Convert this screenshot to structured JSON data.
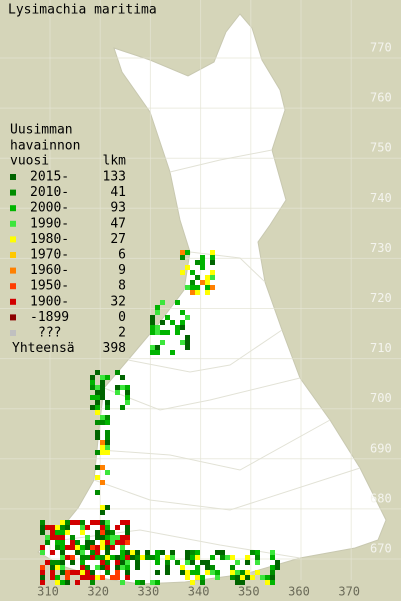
{
  "title": "Lysimachia maritima",
  "legend": {
    "heading": [
      "Uusimman",
      "havainnon"
    ],
    "columns": [
      "vuosi",
      "lkm"
    ],
    "rows": [
      {
        "label": "2015-",
        "count": 133,
        "color": "#006400"
      },
      {
        "label": "2010-",
        "count": 41,
        "color": "#008c00"
      },
      {
        "label": "2000-",
        "count": 93,
        "color": "#00b400"
      },
      {
        "label": "1990-",
        "count": 47,
        "color": "#3ce63c"
      },
      {
        "label": "1980-",
        "count": 27,
        "color": "#ffff00"
      },
      {
        "label": "1970-",
        "count": 6,
        "color": "#ffc800"
      },
      {
        "label": "1960-",
        "count": 9,
        "color": "#ff8000"
      },
      {
        "label": "1950-",
        "count": 8,
        "color": "#ff3c00"
      },
      {
        "label": "1900-",
        "count": 32,
        "color": "#d20000"
      },
      {
        "label": "-1899",
        "count": 0,
        "color": "#8c0000"
      },
      {
        "label": "???",
        "count": 2,
        "color": "#c0c0c0"
      }
    ],
    "total_label": "Yhteensä",
    "total": 398
  },
  "grid": {
    "northings": [
      770,
      760,
      750,
      740,
      730,
      720,
      710,
      700,
      690,
      680,
      670
    ],
    "eastings": [
      310,
      320,
      330,
      340,
      350,
      360,
      370
    ]
  }
}
